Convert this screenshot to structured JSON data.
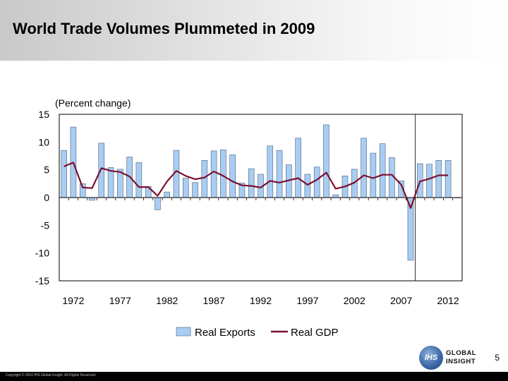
{
  "slide": {
    "title": "World Trade Volumes Plummeted in 2009",
    "page_number": "5",
    "copyright": "Copyright © 2010 IHS Global Insight. All Rights Reserved.",
    "logo": {
      "seal_text": "IHS",
      "line1": "GLOBAL",
      "line2": "INSIGHT"
    }
  },
  "chart_data": {
    "type": "bar",
    "title": "",
    "subtitle": "(Percent change)",
    "xlabel": "",
    "ylabel": "",
    "ylim": [
      -15,
      15
    ],
    "yticks": [
      15,
      10,
      5,
      0,
      -5,
      -10,
      -15
    ],
    "xtick_labels": [
      "1972",
      "1977",
      "1982",
      "1987",
      "1992",
      "1997",
      "2002",
      "2007",
      "2012"
    ],
    "forecast_divider_after": 2008,
    "grid": false,
    "legend": "bottom-center",
    "x": [
      1971,
      1972,
      1973,
      1974,
      1975,
      1976,
      1977,
      1978,
      1979,
      1980,
      1981,
      1982,
      1983,
      1984,
      1985,
      1986,
      1987,
      1988,
      1989,
      1990,
      1991,
      1992,
      1993,
      1994,
      1995,
      1996,
      1997,
      1998,
      1999,
      2000,
      2001,
      2002,
      2003,
      2004,
      2005,
      2006,
      2007,
      2008,
      2009,
      2010,
      2011,
      2012,
      2013
    ],
    "series": [
      {
        "name": "Real Exports",
        "kind": "bar",
        "color": "#a9cdf2",
        "values": [
          8.5,
          12.7,
          2.5,
          -0.5,
          9.8,
          5.4,
          5.1,
          7.3,
          6.3,
          2.0,
          -2.2,
          1.0,
          8.5,
          3.5,
          2.7,
          6.7,
          8.4,
          8.6,
          7.7,
          2.6,
          5.2,
          4.2,
          9.3,
          8.5,
          5.9,
          10.7,
          4.2,
          5.5,
          13.1,
          0.5,
          3.9,
          5.1,
          10.7,
          8.0,
          9.7,
          7.2,
          3.0,
          -11.3,
          6.1,
          6.0,
          6.7,
          6.7,
          0
        ]
      },
      {
        "name": "Real GDP",
        "kind": "line",
        "color": "#7a1030",
        "values": [
          5.6,
          6.3,
          1.8,
          1.7,
          5.3,
          4.8,
          4.6,
          3.8,
          1.9,
          1.9,
          0.3,
          2.9,
          4.8,
          3.9,
          3.3,
          3.6,
          4.7,
          3.9,
          2.9,
          2.2,
          2.1,
          1.8,
          3.0,
          2.7,
          3.1,
          3.5,
          2.3,
          3.2,
          4.5,
          1.6,
          2.0,
          2.7,
          4.0,
          3.5,
          4.1,
          4.1,
          2.3,
          -1.9,
          2.9,
          3.4,
          4.0,
          4.0,
          null
        ]
      }
    ]
  }
}
